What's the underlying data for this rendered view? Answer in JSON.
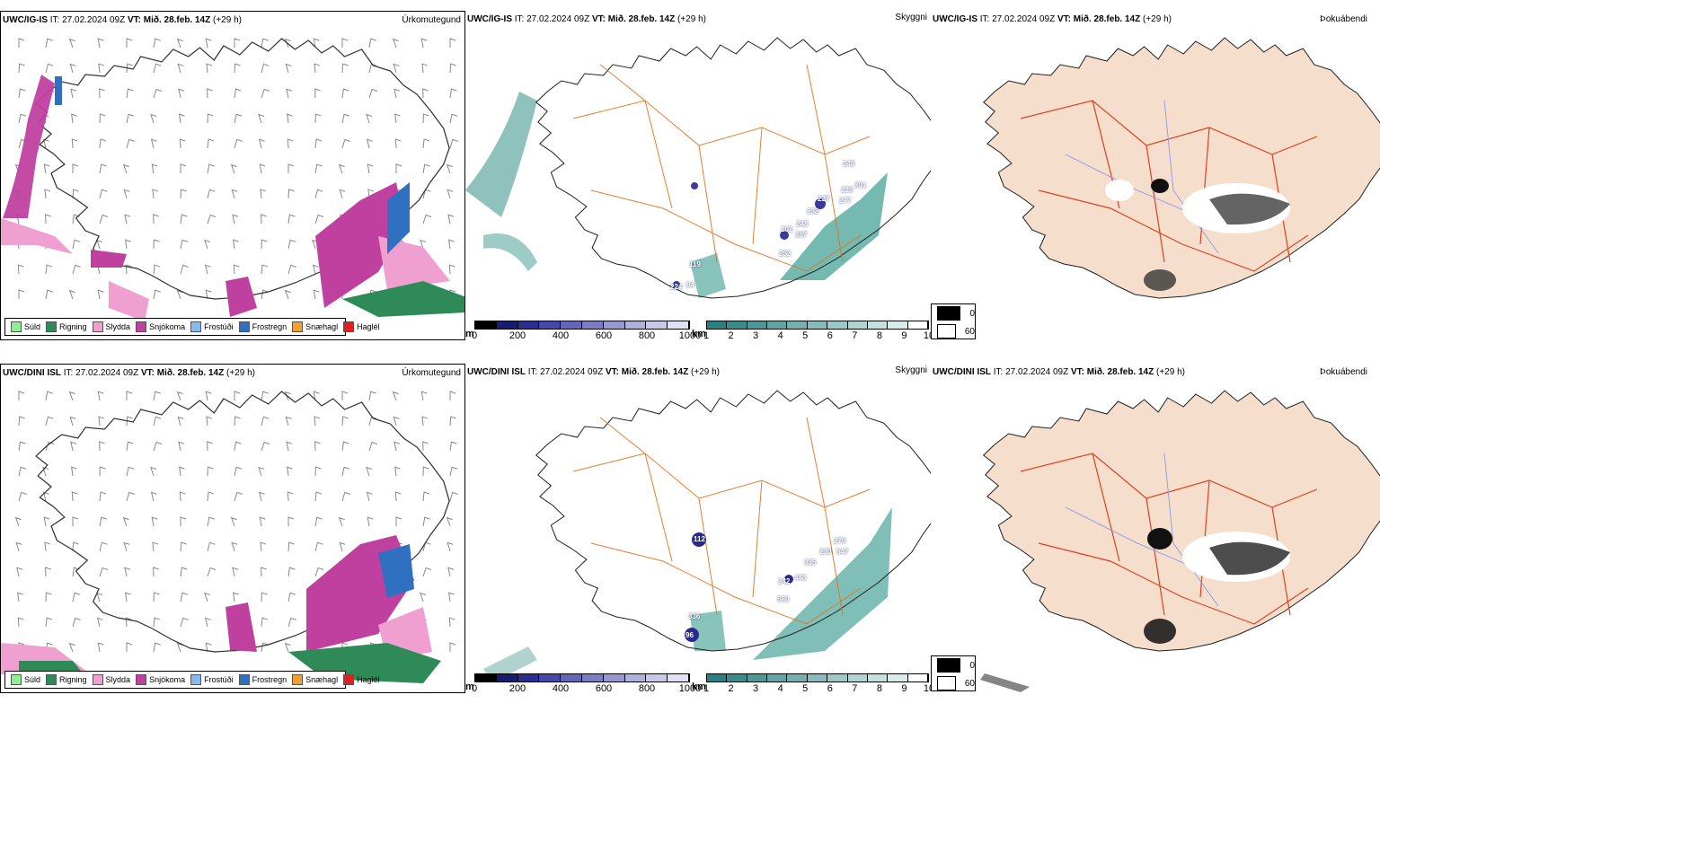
{
  "top": {
    "precip": {
      "model": "UWC/IG-IS",
      "it_label": "IT:",
      "it": "27.02.2024 09Z",
      "vt_label": "VT:",
      "vt": "Mið. 28.feb. 14Z",
      "lead": "(+29 h)",
      "title": "Úrkomutegund"
    },
    "vis": {
      "model": "UWC/IG-IS",
      "it_label": "IT:",
      "it": "27.02.2024 09Z",
      "vt_label": "VT:",
      "vt": "Mið. 28.feb. 14Z",
      "lead": "(+29 h)",
      "title": "Skyggni",
      "labels": [
        "248",
        "235",
        "301",
        "277",
        "238",
        "227",
        "248",
        "102",
        "387",
        "252",
        "119",
        "84",
        "224"
      ]
    },
    "cloud": {
      "model": "UWC/IG-IS",
      "it_label": "IT:",
      "it": "27.02.2024 09Z",
      "vt_label": "VT:",
      "vt": "Mið. 28.feb. 14Z",
      "lead": "(+29 h)",
      "title": "Þokuábendi"
    }
  },
  "bottom": {
    "precip": {
      "model": "UWC/DINI ISL",
      "it_label": "IT:",
      "it": "27.02.2024 09Z",
      "vt_label": "VT:",
      "vt": "Mið. 28.feb. 14Z",
      "lead": "(+29 h)",
      "title": "Úrkomutegund"
    },
    "vis": {
      "model": "UWC/DINI ISL",
      "it_label": "IT:",
      "it": "27.02.2024 09Z",
      "vt_label": "VT:",
      "vt": "Mið. 28.feb. 14Z",
      "lead": "(+29 h)",
      "title": "Skyggni",
      "labels": [
        "112",
        "279",
        "230",
        "547",
        "335",
        "242",
        "448",
        "580",
        "336",
        "96"
      ]
    },
    "cloud": {
      "model": "UWC/DINI ISL",
      "it_label": "IT:",
      "it": "27.02.2024 09Z",
      "vt_label": "VT:",
      "vt": "Mið. 28.feb. 14Z",
      "lead": "(+29 h)",
      "title": "Þokuábendi"
    }
  },
  "precip_legend": [
    {
      "label": "Súld",
      "color": "#90ee90"
    },
    {
      "label": "Rigning",
      "color": "#2e8b57"
    },
    {
      "label": "Slydda",
      "color": "#f0a0d0"
    },
    {
      "label": "Snjókoma",
      "color": "#c040a0"
    },
    {
      "label": "Frostúði",
      "color": "#87b8ee"
    },
    {
      "label": "Frostregn",
      "color": "#3070c0"
    },
    {
      "label": "Snæhagl",
      "color": "#f0a030"
    },
    {
      "label": "Haglél",
      "color": "#e02020"
    }
  ],
  "ceiling_bar": {
    "unit": "m",
    "ticks": [
      "0",
      "200",
      "400",
      "600",
      "800",
      "1000"
    ],
    "colors": [
      "#000000",
      "#1a1a70",
      "#2d2d90",
      "#4848a8",
      "#6464b8",
      "#7c7cc4",
      "#9898d0",
      "#b0b0dc",
      "#c8c8e8",
      "#e0e0f4"
    ]
  },
  "visibility_bar": {
    "unit": "km",
    "ticks": [
      "1",
      "2",
      "3",
      "4",
      "5",
      "6",
      "7",
      "8",
      "9",
      "10"
    ],
    "colors": [
      "#2a8080",
      "#3a8c8c",
      "#4c9898",
      "#60a4a4",
      "#74b0b0",
      "#88bcbc",
      "#9cc8c8",
      "#b0d4d4",
      "#c4e0e0",
      "#d8ecec",
      "#ffffff"
    ]
  },
  "cloud_legend": [
    {
      "label": "0",
      "color": "#000000"
    },
    {
      "label": "60",
      "color": "#ffffff"
    }
  ],
  "colors": {
    "land_fill": "#f5dfcc",
    "roads": "#e8701a",
    "red_roads": "#e04020",
    "rivers": "#8090f0",
    "coast": "#000000"
  }
}
